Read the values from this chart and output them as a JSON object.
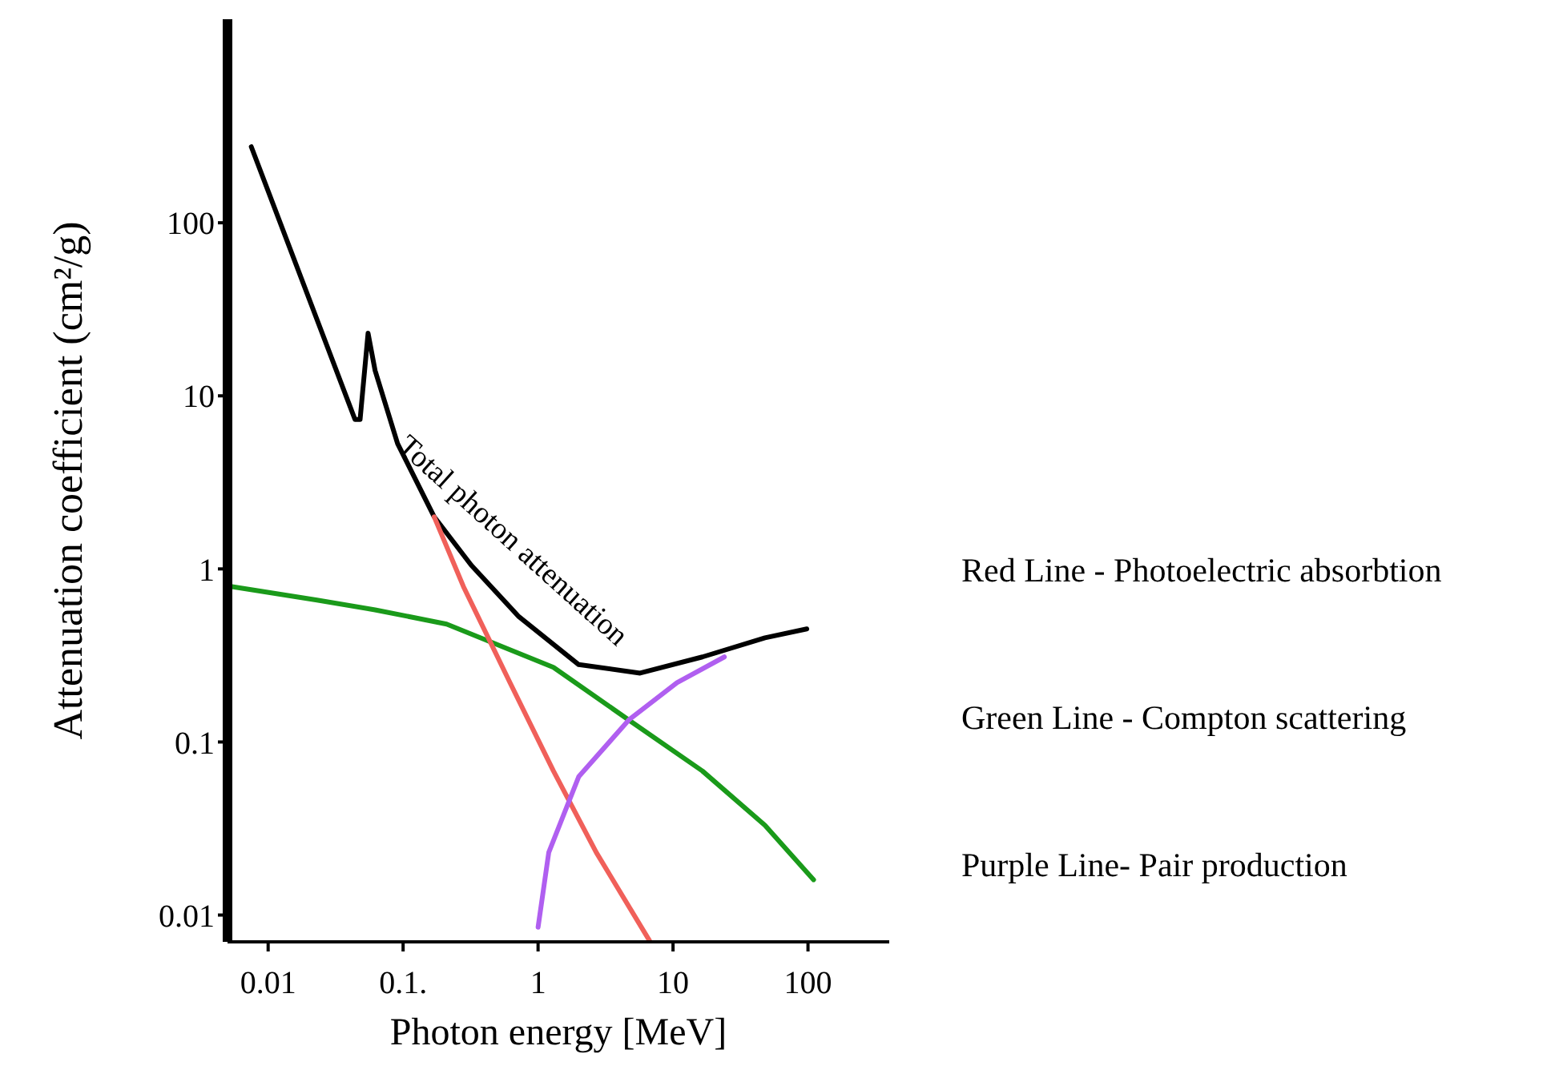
{
  "chart_data": {
    "type": "line",
    "xlabel": "Photon energy [MeV]",
    "ylabel": "Attenuation coefficient (cm²/g)",
    "log": "xy",
    "xlim": [
      0.005,
      400
    ],
    "ylim": [
      0.007,
      1500
    ],
    "xticks": [
      0.01,
      {
        "value": 0.1,
        "label": "0.1."
      },
      1,
      10,
      100
    ],
    "yticks": [
      0.01,
      0.1,
      1,
      10,
      100
    ],
    "series": [
      {
        "color": "#000000",
        "x": [
          0.0075,
          0.044,
          0.048,
          0.055,
          0.062,
          0.091,
          0.17,
          0.32,
          0.72,
          2.0,
          5.7,
          16.5,
          48,
          98
        ],
        "values": [
          275,
          7.3,
          7.3,
          23,
          14,
          5.3,
          2.0,
          1.05,
          0.53,
          0.28,
          0.25,
          0.31,
          0.4,
          0.45
        ]
      },
      {
        "color": "#1a9a1a",
        "x": [
          0.0054,
          0.023,
          0.062,
          0.21,
          1.3,
          4.7,
          16.5,
          48,
          110
        ],
        "values": [
          0.79,
          0.66,
          0.58,
          0.48,
          0.27,
          0.134,
          0.068,
          0.033,
          0.016
        ]
      },
      {
        "color": "#f0605a",
        "x": [
          0.17,
          0.28,
          0.62,
          1.3,
          2.7,
          6.7
        ],
        "values": [
          2.0,
          0.79,
          0.22,
          0.068,
          0.023,
          0.0071
        ]
      },
      {
        "color": "#b05ff0",
        "x": [
          1.0,
          1.2,
          2.0,
          4.7,
          10.7,
          24
        ],
        "values": [
          0.0085,
          0.023,
          0.063,
          0.134,
          0.22,
          0.31
        ]
      }
    ],
    "annotations": [
      "Total photon attenuation",
      "Red Line - Photoelectric absorbtion",
      "Green Line - Compton scattering",
      "Purple Line- Pair production"
    ]
  }
}
